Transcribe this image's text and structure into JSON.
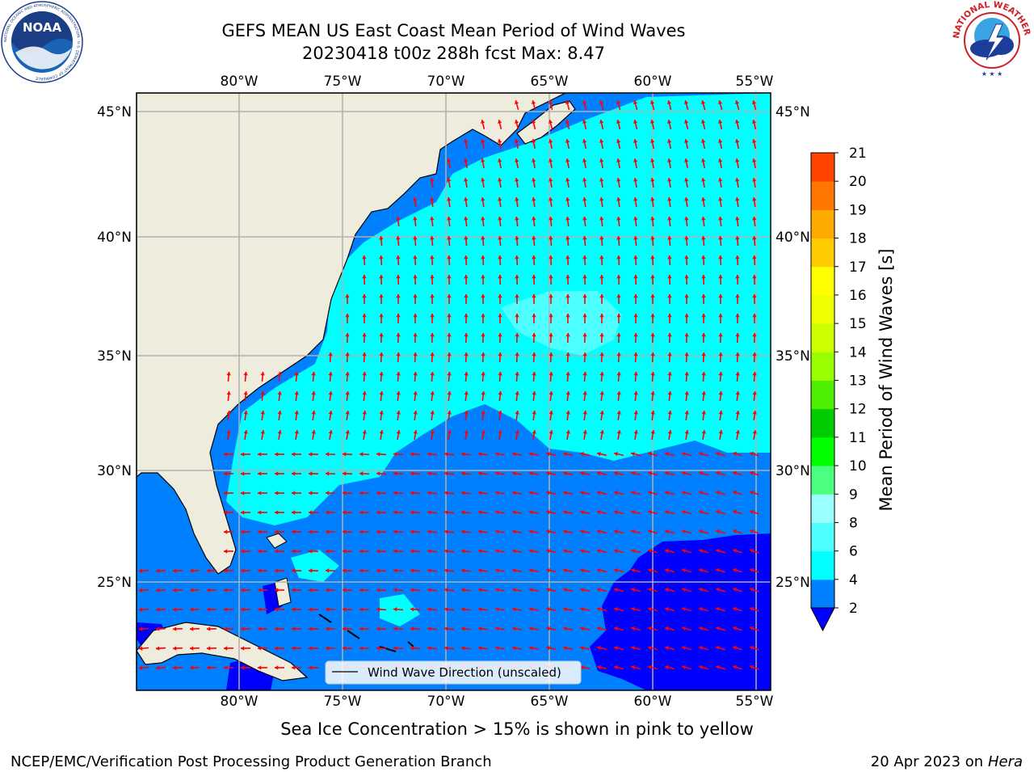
{
  "header": {
    "title_line1": "GEFS MEAN US East Coast Mean Period of Wind Waves",
    "title_line2": "20230418 t00z 288h fcst   Max: 8.47"
  },
  "logos": {
    "noaa_text": "NOAA",
    "noaa_ring_text": "NATIONAL OCEANIC AND ATMOSPHERIC ADMINISTRATION · U.S. DEPARTMENT OF COMMERCE",
    "nws_ring_text": "NATIONAL WEATHER SERVICE"
  },
  "map": {
    "lon_labels": [
      "80°W",
      "75°W",
      "70°W",
      "65°W",
      "60°W",
      "55°W"
    ],
    "lat_labels": [
      "45°N",
      "40°N",
      "35°N",
      "30°N",
      "25°N"
    ],
    "legend_label": "Wind Wave Direction (unscaled)",
    "colors": {
      "land": "#eeecdc",
      "band_2_4": "#0080ff",
      "band_4_6": "#00ffff",
      "band_6_8": "#4dffff",
      "below_2": "#0000ff",
      "arrow": "#ff0000",
      "grid": "#b0b0b0"
    }
  },
  "colorbar": {
    "label": "Mean Period of Wind Waves [s]",
    "ticks": [
      "2",
      "4",
      "6",
      "8",
      "9",
      "10",
      "11",
      "12",
      "13",
      "14",
      "15",
      "16",
      "17",
      "18",
      "19",
      "20",
      "21"
    ],
    "colors": [
      "#0080ff",
      "#00ffff",
      "#4dffff",
      "#99ffff",
      "#4dff80",
      "#00ff00",
      "#00cc00",
      "#4dee00",
      "#99ff00",
      "#ccff00",
      "#eeff00",
      "#ffff00",
      "#ffcc00",
      "#ffaa00",
      "#ff7700",
      "#ff4400",
      "#ff0000"
    ],
    "under_color": "#0000ff"
  },
  "footer": {
    "note": "Sea Ice Concentration > 15% is shown in pink to yellow",
    "left": "NCEP/EMC/Verification Post Processing Product Generation Branch",
    "right_date": "20 Apr 2023 on ",
    "right_host": "Hera"
  }
}
